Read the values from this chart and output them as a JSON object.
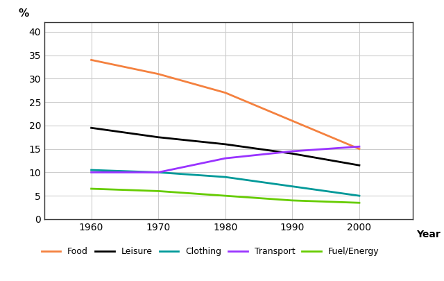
{
  "years": [
    1960,
    1970,
    1980,
    1990,
    2000
  ],
  "series": {
    "Food": [
      34,
      31,
      27,
      21,
      15
    ],
    "Leisure": [
      19.5,
      17.5,
      16,
      14,
      11.5
    ],
    "Clothing": [
      10.5,
      10,
      9,
      7,
      5
    ],
    "Transport": [
      10,
      10,
      13,
      14.5,
      15.5
    ],
    "Fuel/Energy": [
      6.5,
      6,
      5,
      4,
      3.5
    ]
  },
  "colors": {
    "Food": "#F4813F",
    "Leisure": "#000000",
    "Clothing": "#009999",
    "Transport": "#9933FF",
    "Fuel/Energy": "#66CC00"
  },
  "ylabel": "%",
  "xlabel": "Year",
  "ylim": [
    0,
    42
  ],
  "yticks": [
    0,
    5,
    10,
    15,
    20,
    25,
    30,
    35,
    40
  ],
  "xticks": [
    1960,
    1970,
    1980,
    1990,
    2000
  ],
  "legend_labels": [
    "Food",
    "Leisure",
    "Clothing",
    "Transport",
    "Fuel/Energy"
  ],
  "linewidth": 2.0,
  "background_color": "#ffffff",
  "grid_color": "#cccccc"
}
